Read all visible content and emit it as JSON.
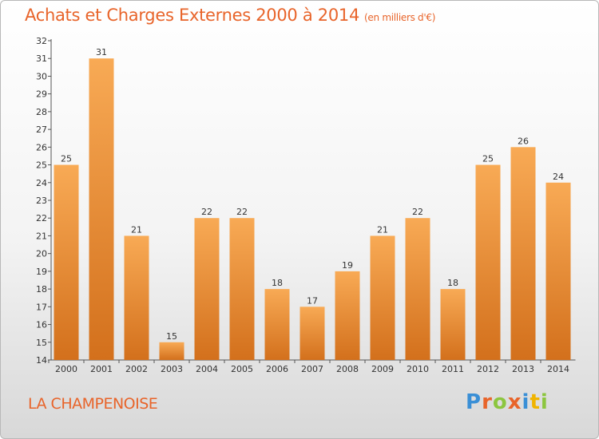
{
  "header": {
    "title": "Achats et Charges Externes 2000 à 2014",
    "subtitle": "(en milliers d'€)"
  },
  "commune": "LA CHAMPENOISE",
  "logo": {
    "text": "Proxiti",
    "letters": [
      {
        "ch": "P",
        "color": "#3a8fd6"
      },
      {
        "ch": "r",
        "color": "#e8642a"
      },
      {
        "ch": "o",
        "color": "#8cc63f"
      },
      {
        "ch": "x",
        "color": "#e8642a"
      },
      {
        "ch": "i",
        "color": "#3a8fd6"
      },
      {
        "ch": "t",
        "color": "#f0b400"
      },
      {
        "ch": "i",
        "color": "#8cc63f"
      }
    ]
  },
  "colors": {
    "accent": "#e8642a",
    "bar_light": "#f8aa55",
    "bar_dark": "#d3701c"
  },
  "chart_data": {
    "type": "bar",
    "categories": [
      "2000",
      "2001",
      "2002",
      "2003",
      "2004",
      "2005",
      "2006",
      "2007",
      "2008",
      "2009",
      "2010",
      "2011",
      "2012",
      "2013",
      "2014"
    ],
    "values": [
      25,
      31,
      21,
      15,
      22,
      22,
      18,
      17,
      19,
      21,
      22,
      18,
      25,
      26,
      24
    ],
    "data_labels": [
      "25",
      "31",
      "21",
      "15",
      "22",
      "22",
      "18",
      "17",
      "19",
      "21",
      "22",
      "18",
      "25",
      "26",
      "24"
    ],
    "yticks": [
      14,
      15,
      16,
      17,
      18,
      19,
      20,
      21,
      22,
      23,
      24,
      25,
      26,
      27,
      28,
      29,
      30,
      31,
      32
    ],
    "ylim": [
      14,
      32
    ],
    "grid": false
  }
}
